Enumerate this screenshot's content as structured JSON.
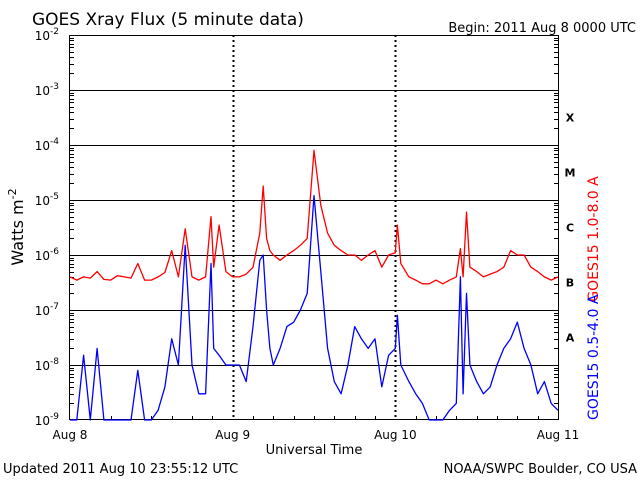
{
  "chart_data": {
    "type": "line",
    "title": "GOES Xray Flux (5 minute data)",
    "begin_label": "Begin:  2011 Aug 8 0000 UTC",
    "xlabel": "Universal Time",
    "ylabel_base": "Watts m",
    "ylabel_exp": "-2",
    "x_ticks": [
      "Aug 8",
      "Aug 9",
      "Aug 10",
      "Aug 11"
    ],
    "xlim": [
      0,
      72
    ],
    "x_units": "hours since 2011 Aug 8 0000 UTC",
    "y_scale": "log",
    "ylim": [
      1e-09,
      0.01
    ],
    "y_ticks": [
      {
        "base": "10",
        "exp": "-9"
      },
      {
        "base": "10",
        "exp": "-8"
      },
      {
        "base": "10",
        "exp": "-7"
      },
      {
        "base": "10",
        "exp": "-6"
      },
      {
        "base": "10",
        "exp": "-5"
      },
      {
        "base": "10",
        "exp": "-4"
      },
      {
        "base": "10",
        "exp": "-3"
      },
      {
        "base": "10",
        "exp": "-2"
      }
    ],
    "flare_classes": [
      {
        "label": "A",
        "value": 1e-08
      },
      {
        "label": "B",
        "value": 1e-07
      },
      {
        "label": "C",
        "value": 1e-06
      },
      {
        "label": "M",
        "value": 1e-05
      },
      {
        "label": "X",
        "value": 0.0001
      }
    ],
    "series": [
      {
        "name": "GOES15 1.0-8.0 A",
        "color": "#ff0000",
        "x": [
          0,
          1,
          2,
          3,
          4,
          5,
          6,
          7,
          8,
          9,
          10,
          11,
          12,
          13,
          14,
          15,
          16,
          17,
          18,
          19,
          20,
          20.8,
          21.2,
          22,
          23,
          24,
          25,
          26,
          27,
          28,
          28.5,
          29,
          29.5,
          30,
          31,
          32,
          33,
          34,
          35,
          36,
          37,
          38,
          39,
          40,
          41,
          42,
          43,
          44,
          45,
          46,
          47,
          48,
          48.3,
          48.8,
          50,
          51,
          52,
          53,
          54,
          55,
          56,
          57,
          57.6,
          58,
          58.5,
          59,
          60,
          61,
          62,
          63,
          64,
          65,
          66,
          67,
          68,
          69,
          70,
          71,
          72
        ],
        "values": [
          4e-07,
          3.5e-07,
          4e-07,
          3.8e-07,
          5e-07,
          3.6e-07,
          3.5e-07,
          4.2e-07,
          4e-07,
          3.8e-07,
          7e-07,
          3.5e-07,
          3.5e-07,
          4e-07,
          4.8e-07,
          1.2e-06,
          4e-07,
          3e-06,
          4e-07,
          3.5e-07,
          4e-07,
          5e-06,
          6e-07,
          3.5e-06,
          5e-07,
          4e-07,
          4e-07,
          4.5e-07,
          6e-07,
          2.5e-06,
          1.8e-05,
          2e-06,
          1.2e-06,
          1e-06,
          8e-07,
          1e-06,
          1.2e-06,
          1.5e-06,
          2e-06,
          8e-05,
          8e-06,
          2.5e-06,
          1.5e-06,
          1.2e-06,
          1e-06,
          1e-06,
          8e-07,
          1e-06,
          1.2e-06,
          6e-07,
          1e-06,
          1.1e-06,
          3.5e-06,
          7e-07,
          4e-07,
          3.5e-07,
          3e-07,
          3e-07,
          3.5e-07,
          3e-07,
          3.5e-07,
          4e-07,
          1.3e-06,
          4e-07,
          6e-06,
          6e-07,
          5e-07,
          4e-07,
          4.5e-07,
          5e-07,
          6e-07,
          1.2e-06,
          1e-06,
          1e-06,
          6e-07,
          5e-07,
          4e-07,
          3.5e-07,
          4e-07
        ]
      },
      {
        "name": "GOES15 0.5-4.0 A",
        "color": "#0000ff",
        "x": [
          0,
          1,
          2,
          3,
          4,
          5,
          6,
          7,
          8,
          9,
          10,
          11,
          12,
          13,
          14,
          15,
          16,
          17,
          18,
          19,
          20,
          20.8,
          21.2,
          22,
          23,
          24,
          25,
          26,
          27,
          28,
          28.5,
          29,
          29.5,
          30,
          31,
          32,
          33,
          34,
          35,
          36,
          37,
          38,
          39,
          40,
          41,
          42,
          43,
          44,
          45,
          46,
          47,
          48,
          48.3,
          48.8,
          50,
          51,
          52,
          53,
          54,
          55,
          56,
          57,
          57.6,
          58,
          58.5,
          59,
          60,
          61,
          62,
          63,
          64,
          65,
          66,
          67,
          68,
          69,
          70,
          71,
          72
        ],
        "values": [
          1e-09,
          1e-09,
          1.5e-08,
          1e-09,
          2e-08,
          1e-09,
          1e-09,
          1e-09,
          1e-09,
          1e-09,
          8e-09,
          1e-09,
          1e-09,
          1.5e-09,
          4e-09,
          3e-08,
          1e-08,
          1.5e-06,
          1e-08,
          3e-09,
          3e-09,
          7e-07,
          2e-08,
          1.5e-08,
          1e-08,
          1e-08,
          1e-08,
          5e-09,
          5e-08,
          8e-07,
          1e-06,
          1e-07,
          2e-08,
          1e-08,
          2e-08,
          5e-08,
          6e-08,
          1e-07,
          2e-07,
          1.2e-05,
          5e-07,
          2e-08,
          5e-09,
          3e-09,
          1e-08,
          5e-08,
          3e-08,
          2e-08,
          3e-08,
          4e-09,
          1.5e-08,
          2e-08,
          8e-08,
          1e-08,
          5e-09,
          3e-09,
          2e-09,
          1e-09,
          1e-09,
          1e-09,
          1.5e-09,
          2e-09,
          4e-07,
          3e-09,
          2e-07,
          1e-08,
          5e-09,
          3e-09,
          4e-09,
          1e-08,
          2e-08,
          3e-08,
          6e-08,
          2e-08,
          1e-08,
          3e-09,
          5e-09,
          2e-09,
          1.5e-09
        ]
      }
    ],
    "footer_left": "Updated 2011 Aug 10 23:55:12 UTC",
    "footer_right": "NOAA/SWPC Boulder, CO USA",
    "grid": "horizontal solid at each decade, vertical dotted at day boundaries"
  }
}
